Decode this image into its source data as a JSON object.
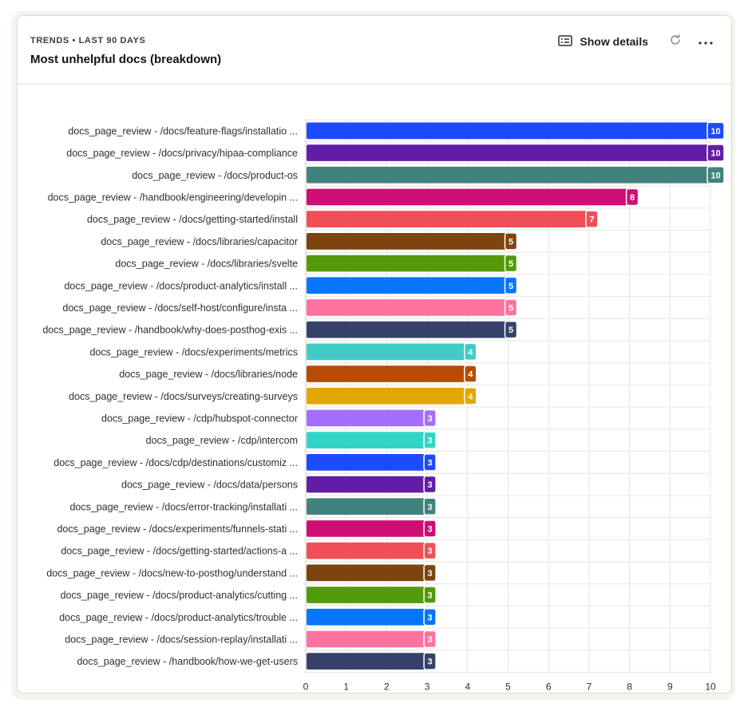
{
  "header": {
    "subtitle": "TRENDS • LAST 90 DAYS",
    "title": "Most unhelpful docs (breakdown)",
    "show_details_label": "Show details"
  },
  "icons": {
    "details": "list-details-icon",
    "refresh": "refresh-icon",
    "more": "more-horizontal-icon"
  },
  "colors": {
    "grid": "#e6e6e1",
    "axis": "#c8c8c2",
    "label": "#2d2f36"
  },
  "chart_data": {
    "type": "bar",
    "orientation": "horizontal",
    "title": "Most unhelpful docs (breakdown)",
    "xlim": [
      0,
      10
    ],
    "x_ticks": [
      0,
      1,
      2,
      3,
      4,
      5,
      6,
      7,
      8,
      9,
      10
    ],
    "grid": true,
    "categories": [
      "docs_page_review - /docs/feature-flags/installatio ...",
      "docs_page_review - /docs/privacy/hipaa-compliance",
      "docs_page_review - /docs/product-os",
      "docs_page_review - /handbook/engineering/developin ...",
      "docs_page_review - /docs/getting-started/install",
      "docs_page_review - /docs/libraries/capacitor",
      "docs_page_review - /docs/libraries/svelte",
      "docs_page_review - /docs/product-analytics/install ...",
      "docs_page_review - /docs/self-host/configure/insta ...",
      "docs_page_review - /handbook/why-does-posthog-exis ...",
      "docs_page_review - /docs/experiments/metrics",
      "docs_page_review - /docs/libraries/node",
      "docs_page_review - /docs/surveys/creating-surveys",
      "docs_page_review - /cdp/hubspot-connector",
      "docs_page_review - /cdp/intercom",
      "docs_page_review - /docs/cdp/destinations/customiz ...",
      "docs_page_review - /docs/data/persons",
      "docs_page_review - /docs/error-tracking/installati ...",
      "docs_page_review - /docs/experiments/funnels-stati ...",
      "docs_page_review - /docs/getting-started/actions-a ...",
      "docs_page_review - /docs/new-to-posthog/understand ...",
      "docs_page_review - /docs/product-analytics/cutting ...",
      "docs_page_review - /docs/product-analytics/trouble ...",
      "docs_page_review - /docs/session-replay/installati ...",
      "docs_page_review - /handbook/how-we-get-users"
    ],
    "values": [
      10,
      10,
      10,
      8,
      7,
      5,
      5,
      5,
      5,
      5,
      4,
      4,
      4,
      3,
      3,
      3,
      3,
      3,
      3,
      3,
      3,
      3,
      3,
      3,
      3
    ],
    "bar_colors": [
      "#1d4aff",
      "#621da6",
      "#42827e",
      "#ce0e74",
      "#f14f58",
      "#7c440e",
      "#529a0a",
      "#0476fb",
      "#fe729e",
      "#35416b",
      "#41cbc4",
      "#b64b02",
      "#e4a604",
      "#a56eff",
      "#30d5c8",
      "#1d4aff",
      "#621da6",
      "#42827e",
      "#ce0e74",
      "#f14f58",
      "#7c440e",
      "#529a0a",
      "#0476fb",
      "#fe729e",
      "#35416b"
    ]
  }
}
